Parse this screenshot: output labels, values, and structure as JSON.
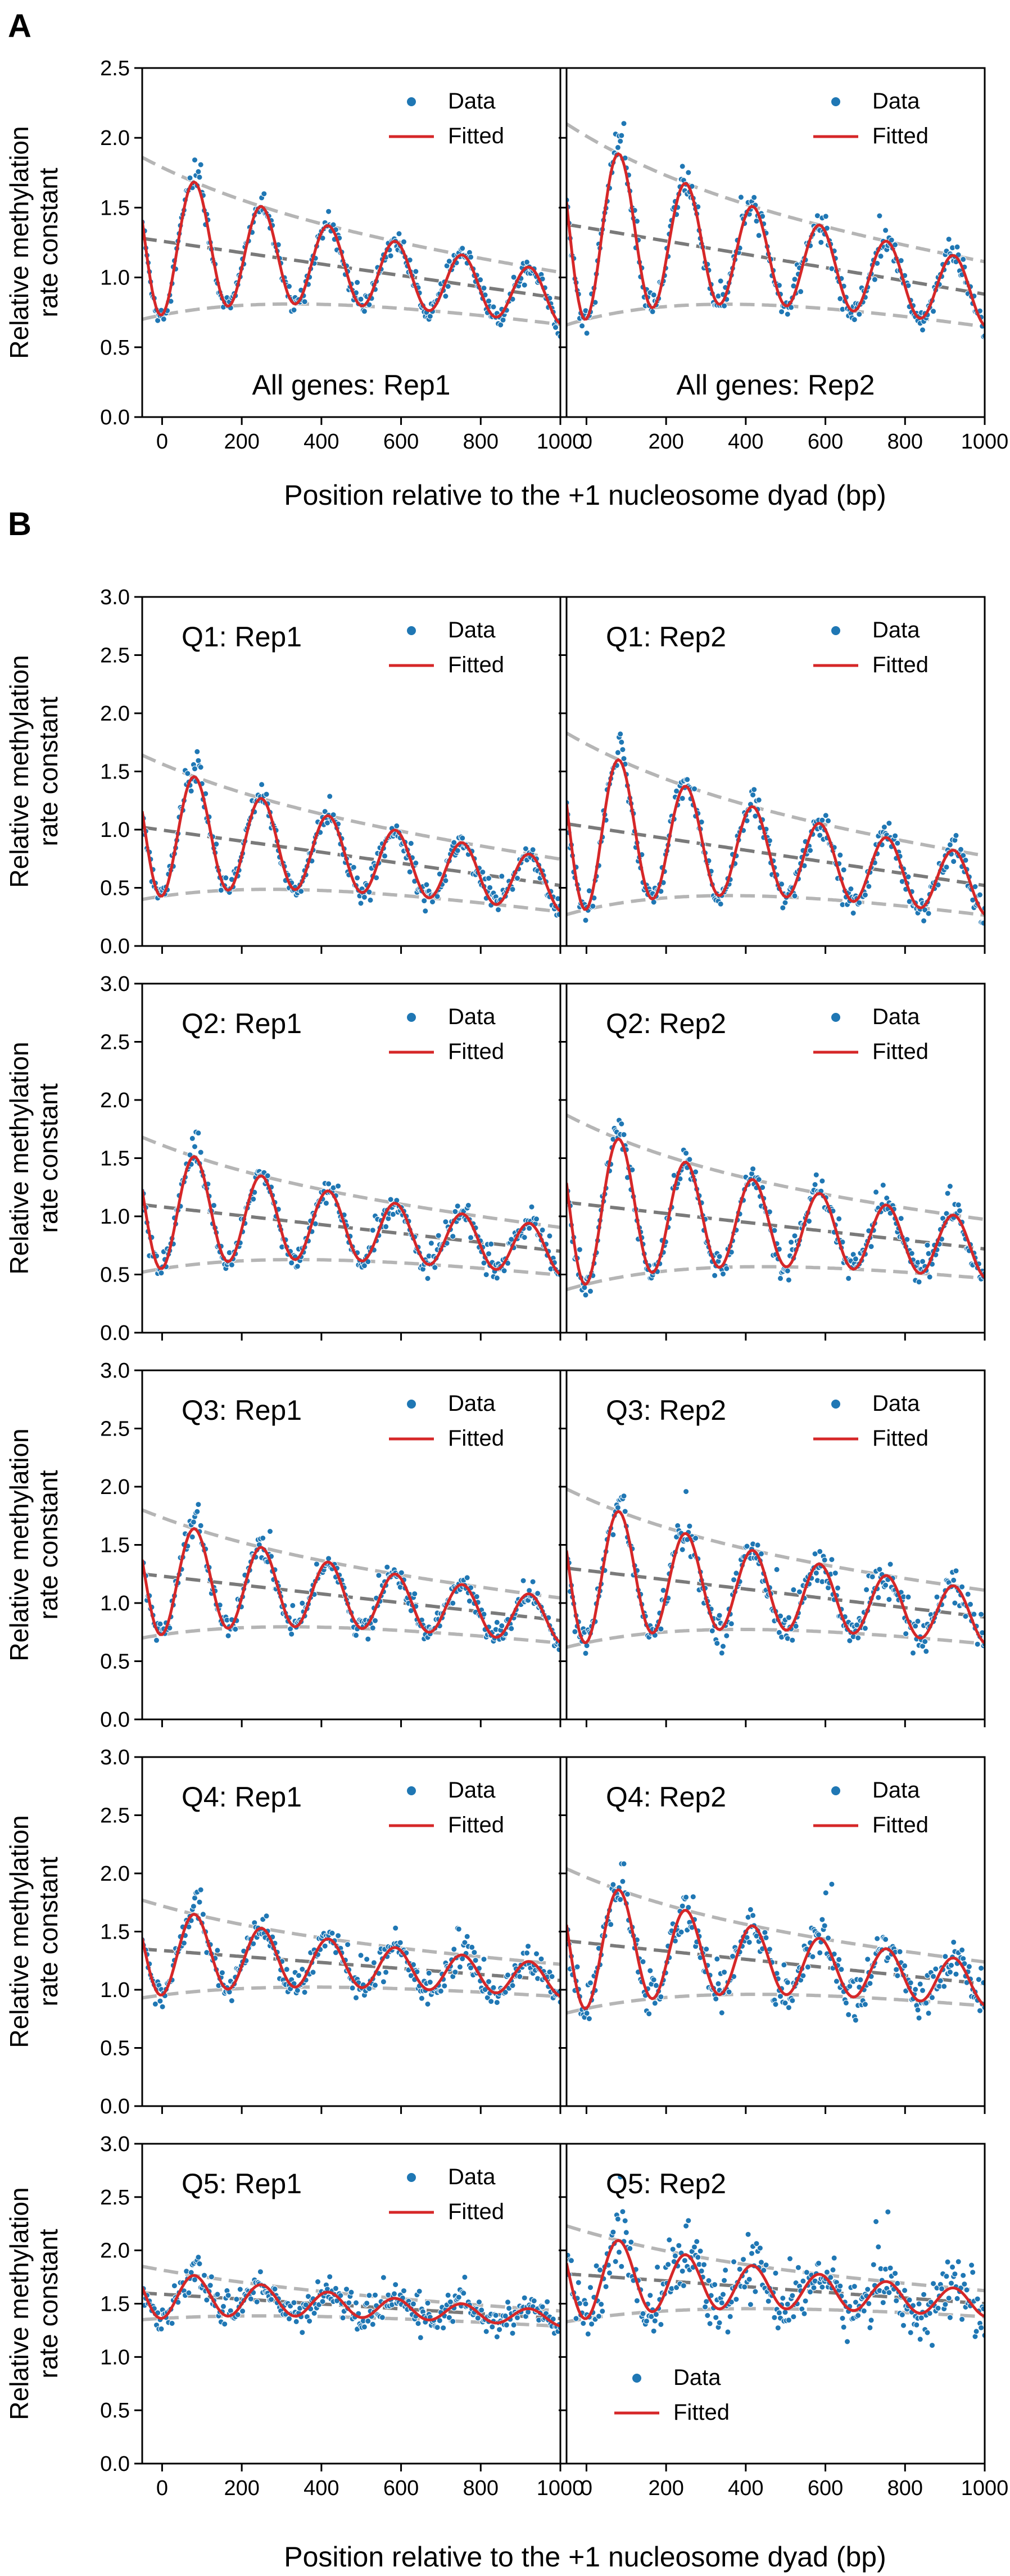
{
  "figure": {
    "panel_letters": [
      "A",
      "B"
    ],
    "xlabel_A": "Position relative to the +1 nucleosome dyad (bp)",
    "xlabel_B": "Position relative to the +1 nucleosome dyad (bp)",
    "ylabel_line1": "Relative methylation",
    "ylabel_line2": "rate constant",
    "legend_labels": [
      "Data",
      "Fitted"
    ],
    "colors": {
      "data": "#1f77b4",
      "fitted": "#d62728",
      "envelope": "#b5b5b5",
      "trend": "#7a7a7a",
      "axis": "#000000"
    }
  },
  "chart_data": [
    {
      "type": "scatter",
      "id": "A-rep1",
      "title": "All genes: Rep1",
      "title_pos": "bottom",
      "legend": "top-right",
      "xlim": [
        -50,
        1000
      ],
      "ylim": [
        0,
        2.5
      ],
      "xticks": [
        0,
        200,
        400,
        600,
        800,
        1000
      ],
      "yticks": [
        0,
        0.5,
        1,
        1.5,
        2,
        2.5
      ],
      "series": [
        {
          "name": "Data",
          "kind": "points"
        },
        {
          "name": "Fitted",
          "kind": "line"
        }
      ],
      "model": {
        "peak1": 82,
        "period": 168,
        "trend_start": 1.28,
        "trend_end": 0.85,
        "amp_start": 0.58,
        "amp_end": 0.16,
        "noise": 0.04
      }
    },
    {
      "type": "scatter",
      "id": "A-rep2",
      "title": "All genes: Rep2",
      "title_pos": "bottom",
      "legend": "top-right",
      "xlim": [
        -50,
        1000
      ],
      "ylim": [
        0,
        2.5
      ],
      "xticks": [
        0,
        200,
        400,
        600,
        800,
        1000
      ],
      "yticks": [
        0,
        0.5,
        1,
        1.5,
        2,
        2.5
      ],
      "series": [
        {
          "name": "Data",
          "kind": "points"
        },
        {
          "name": "Fitted",
          "kind": "line"
        }
      ],
      "model": {
        "peak1": 82,
        "period": 168,
        "trend_start": 1.38,
        "trend_end": 0.88,
        "amp_start": 0.72,
        "amp_end": 0.2,
        "noise": 0.05
      }
    },
    {
      "type": "scatter",
      "id": "Q1-rep1",
      "title": "Q1: Rep1",
      "title_pos": "top",
      "legend": "top-right",
      "xlim": [
        -50,
        1000
      ],
      "ylim": [
        0,
        3
      ],
      "xticks": [
        0,
        200,
        400,
        600,
        800,
        1000
      ],
      "yticks": [
        0,
        0.5,
        1,
        1.5,
        2,
        2.5,
        3
      ],
      "series": [
        {
          "name": "Data",
          "kind": "points"
        },
        {
          "name": "Fitted",
          "kind": "line"
        }
      ],
      "model": {
        "peak1": 82,
        "period": 168,
        "trend_start": 1.02,
        "trend_end": 0.52,
        "amp_start": 0.62,
        "amp_end": 0.2,
        "noise": 0.05
      }
    },
    {
      "type": "scatter",
      "id": "Q1-rep2",
      "title": "Q1: Rep2",
      "title_pos": "top",
      "legend": "top-right",
      "xlim": [
        -50,
        1000
      ],
      "ylim": [
        0,
        3
      ],
      "xticks": [
        0,
        200,
        400,
        600,
        800,
        1000
      ],
      "yticks": [
        0,
        0.5,
        1,
        1.5,
        2,
        2.5,
        3
      ],
      "series": [
        {
          "name": "Data",
          "kind": "points"
        },
        {
          "name": "Fitted",
          "kind": "line"
        }
      ],
      "model": {
        "peak1": 82,
        "period": 168,
        "trend_start": 1.05,
        "trend_end": 0.52,
        "amp_start": 0.78,
        "amp_end": 0.22,
        "noise": 0.06
      }
    },
    {
      "type": "scatter",
      "id": "Q2-rep1",
      "title": "Q2: Rep1",
      "title_pos": "top",
      "legend": "top-right",
      "xlim": [
        -50,
        1000
      ],
      "ylim": [
        0,
        3
      ],
      "xticks": [
        0,
        200,
        400,
        600,
        800,
        1000
      ],
      "yticks": [
        0,
        0.5,
        1,
        1.5,
        2,
        2.5,
        3
      ],
      "series": [
        {
          "name": "Data",
          "kind": "points"
        },
        {
          "name": "Fitted",
          "kind": "line"
        }
      ],
      "model": {
        "peak1": 82,
        "period": 168,
        "trend_start": 1.1,
        "trend_end": 0.7,
        "amp_start": 0.58,
        "amp_end": 0.18,
        "noise": 0.05
      }
    },
    {
      "type": "scatter",
      "id": "Q2-rep2",
      "title": "Q2: Rep2",
      "title_pos": "top",
      "legend": "top-right",
      "xlim": [
        -50,
        1000
      ],
      "ylim": [
        0,
        3
      ],
      "xticks": [
        0,
        200,
        400,
        600,
        800,
        1000
      ],
      "yticks": [
        0,
        0.5,
        1,
        1.5,
        2,
        2.5,
        3
      ],
      "series": [
        {
          "name": "Data",
          "kind": "points"
        },
        {
          "name": "Fitted",
          "kind": "line"
        }
      ],
      "model": {
        "peak1": 82,
        "period": 168,
        "trend_start": 1.12,
        "trend_end": 0.72,
        "amp_start": 0.75,
        "amp_end": 0.22,
        "noise": 0.06
      }
    },
    {
      "type": "scatter",
      "id": "Q3-rep1",
      "title": "Q3: Rep1",
      "title_pos": "top",
      "legend": "top-right",
      "xlim": [
        -50,
        1000
      ],
      "ylim": [
        0,
        3
      ],
      "xticks": [
        0,
        200,
        400,
        600,
        800,
        1000
      ],
      "yticks": [
        0,
        0.5,
        1,
        1.5,
        2,
        2.5,
        3
      ],
      "series": [
        {
          "name": "Data",
          "kind": "points"
        },
        {
          "name": "Fitted",
          "kind": "line"
        }
      ],
      "model": {
        "peak1": 82,
        "period": 168,
        "trend_start": 1.25,
        "trend_end": 0.85,
        "amp_start": 0.55,
        "amp_end": 0.17,
        "noise": 0.05
      }
    },
    {
      "type": "scatter",
      "id": "Q3-rep2",
      "title": "Q3: Rep2",
      "title_pos": "top",
      "legend": "top-right",
      "xlim": [
        -50,
        1000
      ],
      "ylim": [
        0,
        3
      ],
      "xticks": [
        0,
        200,
        400,
        600,
        800,
        1000
      ],
      "yticks": [
        0,
        0.5,
        1,
        1.5,
        2,
        2.5,
        3
      ],
      "series": [
        {
          "name": "Data",
          "kind": "points"
        },
        {
          "name": "Fitted",
          "kind": "line"
        }
      ],
      "model": {
        "peak1": 82,
        "period": 168,
        "trend_start": 1.3,
        "trend_end": 0.88,
        "amp_start": 0.68,
        "amp_end": 0.2,
        "noise": 0.07
      }
    },
    {
      "type": "scatter",
      "id": "Q4-rep1",
      "title": "Q4: Rep1",
      "title_pos": "top",
      "legend": "top-right",
      "xlim": [
        -50,
        1000
      ],
      "ylim": [
        0,
        3
      ],
      "xticks": [
        0,
        200,
        400,
        600,
        800,
        1000
      ],
      "yticks": [
        0,
        0.5,
        1,
        1.5,
        2,
        2.5,
        3
      ],
      "series": [
        {
          "name": "Data",
          "kind": "points"
        },
        {
          "name": "Fitted",
          "kind": "line"
        }
      ],
      "model": {
        "peak1": 82,
        "period": 168,
        "trend_start": 1.35,
        "trend_end": 1.08,
        "amp_start": 0.42,
        "amp_end": 0.12,
        "noise": 0.06
      }
    },
    {
      "type": "scatter",
      "id": "Q4-rep2",
      "title": "Q4: Rep2",
      "title_pos": "top",
      "legend": "top-right",
      "xlim": [
        -50,
        1000
      ],
      "ylim": [
        0,
        3
      ],
      "xticks": [
        0,
        200,
        400,
        600,
        800,
        1000
      ],
      "yticks": [
        0,
        0.5,
        1,
        1.5,
        2,
        2.5,
        3
      ],
      "series": [
        {
          "name": "Data",
          "kind": "points"
        },
        {
          "name": "Fitted",
          "kind": "line"
        }
      ],
      "model": {
        "peak1": 82,
        "period": 168,
        "trend_start": 1.42,
        "trend_end": 1.05,
        "amp_start": 0.62,
        "amp_end": 0.16,
        "noise": 0.09
      }
    },
    {
      "type": "scatter",
      "id": "Q5-rep1",
      "title": "Q5: Rep1",
      "title_pos": "top",
      "legend": "top-right",
      "xlim": [
        -50,
        1000
      ],
      "ylim": [
        0,
        3
      ],
      "xticks": [
        0,
        200,
        400,
        600,
        800,
        1000
      ],
      "yticks": [
        0,
        0.5,
        1,
        1.5,
        2,
        2.5,
        3
      ],
      "series": [
        {
          "name": "Data",
          "kind": "points"
        },
        {
          "name": "Fitted",
          "kind": "line"
        }
      ],
      "model": {
        "peak1": 82,
        "period": 168,
        "trend_start": 1.6,
        "trend_end": 1.36,
        "amp_start": 0.25,
        "amp_end": 0.06,
        "noise": 0.07
      }
    },
    {
      "type": "scatter",
      "id": "Q5-rep2",
      "title": "Q5: Rep2",
      "title_pos": "top",
      "legend": "bottom-left",
      "xlim": [
        -50,
        1000
      ],
      "ylim": [
        0,
        3
      ],
      "xticks": [
        0,
        200,
        400,
        600,
        800,
        1000
      ],
      "yticks": [
        0,
        0.5,
        1,
        1.5,
        2,
        2.5,
        3
      ],
      "series": [
        {
          "name": "Data",
          "kind": "points"
        },
        {
          "name": "Fitted",
          "kind": "line"
        }
      ],
      "model": {
        "peak1": 82,
        "period": 168,
        "trend_start": 1.78,
        "trend_end": 1.5,
        "amp_start": 0.45,
        "amp_end": 0.1,
        "noise": 0.13
      }
    }
  ]
}
